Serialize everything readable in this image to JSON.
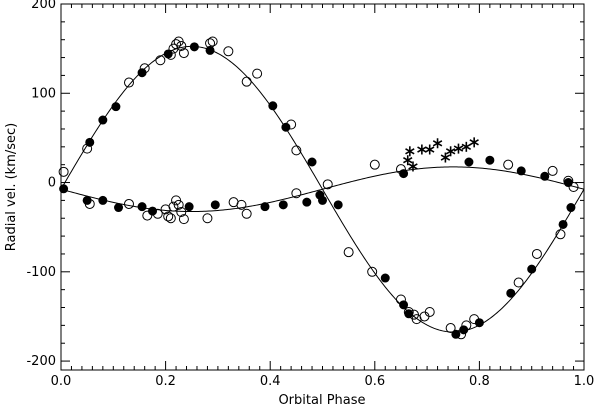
{
  "chart_data": {
    "type": "scatter",
    "xlabel": "Orbital Phase",
    "ylabel": "Radial vel. (km/sec)",
    "xlim": [
      0.0,
      1.0
    ],
    "ylim": [
      -210,
      200
    ],
    "xticks": [
      0.0,
      0.2,
      0.4,
      0.6,
      0.8,
      1.0
    ],
    "xtick_labels": [
      "0.0",
      "0.2",
      "0.4",
      "0.6",
      "0.8",
      "1.0"
    ],
    "yticks": [
      -200,
      -100,
      0,
      100,
      200
    ],
    "ytick_labels": [
      "-200",
      "-100",
      "0",
      "100",
      "200"
    ],
    "grid": false,
    "curves": [
      {
        "name": "",
        "gamma": -7.5,
        "amplitude": 160,
        "phase_of_max": 0.25
      },
      {
        "name": "",
        "gamma": -7.5,
        "amplitude": 25,
        "phase_of_max": 0.75
      }
    ],
    "series": [
      {
        "name": "",
        "marker": "filled-circle",
        "points": [
          [
            0.005,
            -7
          ],
          [
            0.055,
            45
          ],
          [
            0.08,
            70
          ],
          [
            0.105,
            85
          ],
          [
            0.155,
            123
          ],
          [
            0.205,
            144
          ],
          [
            0.255,
            152
          ],
          [
            0.285,
            148
          ],
          [
            0.405,
            86
          ],
          [
            0.43,
            62
          ],
          [
            0.48,
            23
          ],
          [
            0.495,
            -14
          ],
          [
            0.62,
            -107
          ],
          [
            0.655,
            -137
          ],
          [
            0.665,
            -147
          ],
          [
            0.755,
            -170
          ],
          [
            0.77,
            -165
          ],
          [
            0.8,
            -157
          ],
          [
            0.86,
            -124
          ],
          [
            0.9,
            -97
          ],
          [
            0.96,
            -47
          ],
          [
            0.975,
            -28
          ],
          [
            0.05,
            -20
          ],
          [
            0.08,
            -20
          ],
          [
            0.11,
            -28
          ],
          [
            0.155,
            -27
          ],
          [
            0.175,
            -32
          ],
          [
            0.245,
            -27
          ],
          [
            0.295,
            -25
          ],
          [
            0.39,
            -27
          ],
          [
            0.425,
            -25
          ],
          [
            0.47,
            -22
          ],
          [
            0.5,
            -20
          ],
          [
            0.53,
            -25
          ],
          [
            0.655,
            10
          ],
          [
            0.78,
            23
          ],
          [
            0.82,
            25
          ],
          [
            0.88,
            13
          ],
          [
            0.925,
            7
          ],
          [
            0.97,
            0
          ]
        ]
      },
      {
        "name": "",
        "marker": "open-circle",
        "points": [
          [
            0.005,
            12
          ],
          [
            0.05,
            38
          ],
          [
            0.13,
            112
          ],
          [
            0.16,
            128
          ],
          [
            0.19,
            137
          ],
          [
            0.21,
            143
          ],
          [
            0.215,
            150
          ],
          [
            0.22,
            155
          ],
          [
            0.225,
            158
          ],
          [
            0.23,
            153
          ],
          [
            0.235,
            145
          ],
          [
            0.285,
            156
          ],
          [
            0.29,
            158
          ],
          [
            0.32,
            147
          ],
          [
            0.355,
            113
          ],
          [
            0.375,
            122
          ],
          [
            0.44,
            65
          ],
          [
            0.45,
            36
          ],
          [
            0.51,
            -2
          ],
          [
            0.55,
            -78
          ],
          [
            0.595,
            -100
          ],
          [
            0.65,
            -131
          ],
          [
            0.665,
            -145
          ],
          [
            0.675,
            -148
          ],
          [
            0.68,
            -153
          ],
          [
            0.695,
            -150
          ],
          [
            0.705,
            -145
          ],
          [
            0.745,
            -163
          ],
          [
            0.765,
            -170
          ],
          [
            0.775,
            -160
          ],
          [
            0.79,
            -153
          ],
          [
            0.875,
            -112
          ],
          [
            0.91,
            -80
          ],
          [
            0.955,
            -58
          ],
          [
            0.055,
            -24
          ],
          [
            0.13,
            -24
          ],
          [
            0.165,
            -37
          ],
          [
            0.185,
            -35
          ],
          [
            0.2,
            -30
          ],
          [
            0.205,
            -38
          ],
          [
            0.21,
            -40
          ],
          [
            0.215,
            -27
          ],
          [
            0.22,
            -20
          ],
          [
            0.225,
            -25
          ],
          [
            0.23,
            -33
          ],
          [
            0.235,
            -41
          ],
          [
            0.28,
            -40
          ],
          [
            0.33,
            -22
          ],
          [
            0.345,
            -25
          ],
          [
            0.355,
            -35
          ],
          [
            0.45,
            -12
          ],
          [
            0.6,
            20
          ],
          [
            0.65,
            15
          ],
          [
            0.855,
            20
          ],
          [
            0.94,
            13
          ],
          [
            0.97,
            2
          ],
          [
            0.98,
            -5
          ]
        ]
      },
      {
        "name": "",
        "marker": "asterisk",
        "points": [
          [
            0.663,
            25
          ],
          [
            0.667,
            35
          ],
          [
            0.673,
            18
          ],
          [
            0.69,
            37
          ],
          [
            0.705,
            37
          ],
          [
            0.72,
            44
          ],
          [
            0.735,
            28
          ],
          [
            0.745,
            35
          ],
          [
            0.76,
            38
          ],
          [
            0.775,
            40
          ],
          [
            0.79,
            45
          ]
        ]
      }
    ]
  }
}
